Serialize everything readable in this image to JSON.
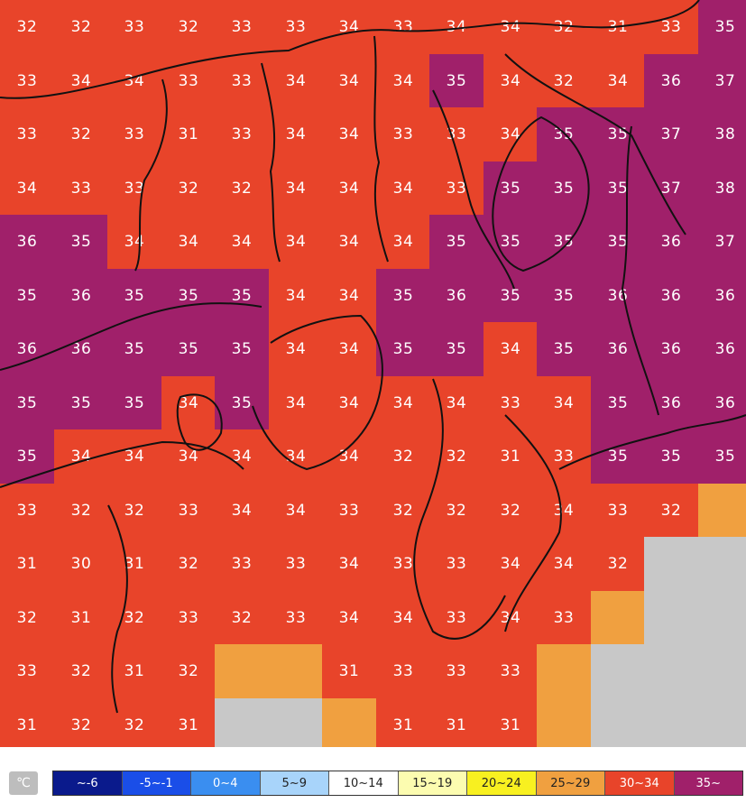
{
  "grid": {
    "cols": 14,
    "rows": 14,
    "values": [
      [
        "32",
        "32",
        "33",
        "32",
        "33",
        "33",
        "34",
        "33",
        "34",
        "34",
        "32",
        "31",
        "33",
        "35"
      ],
      [
        "33",
        "34",
        "34",
        "33",
        "33",
        "34",
        "34",
        "34",
        "35",
        "34",
        "32",
        "34",
        "36",
        "37"
      ],
      [
        "33",
        "32",
        "33",
        "31",
        "33",
        "34",
        "34",
        "33",
        "33",
        "34",
        "35",
        "35",
        "37",
        "38"
      ],
      [
        "34",
        "33",
        "33",
        "32",
        "32",
        "34",
        "34",
        "34",
        "33",
        "35",
        "35",
        "35",
        "37",
        "38"
      ],
      [
        "36",
        "35",
        "34",
        "34",
        "34",
        "34",
        "34",
        "34",
        "35",
        "35",
        "35",
        "35",
        "36",
        "37"
      ],
      [
        "35",
        "36",
        "35",
        "35",
        "35",
        "34",
        "34",
        "35",
        "36",
        "35",
        "35",
        "36",
        "36",
        "36"
      ],
      [
        "36",
        "36",
        "35",
        "35",
        "35",
        "34",
        "34",
        "35",
        "35",
        "34",
        "35",
        "36",
        "36",
        "36"
      ],
      [
        "35",
        "35",
        "35",
        "34",
        "35",
        "34",
        "34",
        "34",
        "34",
        "33",
        "34",
        "35",
        "36",
        "36"
      ],
      [
        "35",
        "34",
        "34",
        "34",
        "34",
        "34",
        "34",
        "32",
        "32",
        "31",
        "33",
        "35",
        "35",
        "35"
      ],
      [
        "33",
        "32",
        "32",
        "33",
        "34",
        "34",
        "33",
        "32",
        "32",
        "32",
        "34",
        "33",
        "32",
        ""
      ],
      [
        "31",
        "30",
        "31",
        "32",
        "33",
        "33",
        "34",
        "33",
        "33",
        "34",
        "34",
        "32",
        "",
        ""
      ],
      [
        "32",
        "31",
        "32",
        "33",
        "32",
        "33",
        "34",
        "34",
        "33",
        "34",
        "33",
        "",
        "",
        ""
      ],
      [
        "33",
        "32",
        "31",
        "32",
        "",
        "",
        "31",
        "33",
        "33",
        "33",
        "",
        "",
        "",
        ""
      ],
      [
        "31",
        "32",
        "32",
        "31",
        "",
        "",
        "",
        "31",
        "31",
        "31",
        "",
        "",
        "",
        ""
      ]
    ],
    "bands": [
      [
        "c30",
        "c30",
        "c30",
        "c30",
        "c30",
        "c30",
        "c30",
        "c30",
        "c30",
        "c30",
        "c30",
        "c30",
        "c30",
        "c35"
      ],
      [
        "c30",
        "c30",
        "c30",
        "c30",
        "c30",
        "c30",
        "c30",
        "c30",
        "c35",
        "c30",
        "c30",
        "c30",
        "c35",
        "c35"
      ],
      [
        "c30",
        "c30",
        "c30",
        "c30",
        "c30",
        "c30",
        "c30",
        "c30",
        "c30",
        "c30",
        "c35",
        "c35",
        "c35",
        "c35"
      ],
      [
        "c30",
        "c30",
        "c30",
        "c30",
        "c30",
        "c30",
        "c30",
        "c30",
        "c30",
        "c35",
        "c35",
        "c35",
        "c35",
        "c35"
      ],
      [
        "c35",
        "c35",
        "c30",
        "c30",
        "c30",
        "c30",
        "c30",
        "c30",
        "c35",
        "c35",
        "c35",
        "c35",
        "c35",
        "c35"
      ],
      [
        "c35",
        "c35",
        "c35",
        "c35",
        "c35",
        "c30",
        "c30",
        "c35",
        "c35",
        "c35",
        "c35",
        "c35",
        "c35",
        "c35"
      ],
      [
        "c35",
        "c35",
        "c35",
        "c35",
        "c35",
        "c30",
        "c30",
        "c35",
        "c35",
        "c30",
        "c35",
        "c35",
        "c35",
        "c35"
      ],
      [
        "c35",
        "c35",
        "c35",
        "c30",
        "c35",
        "c30",
        "c30",
        "c30",
        "c30",
        "c30",
        "c30",
        "c35",
        "c35",
        "c35"
      ],
      [
        "c35",
        "c30",
        "c30",
        "c30",
        "c30",
        "c30",
        "c30",
        "c30",
        "c30",
        "c30",
        "c30",
        "c35",
        "c35",
        "c35"
      ],
      [
        "c30",
        "c30",
        "c30",
        "c30",
        "c30",
        "c30",
        "c30",
        "c30",
        "c30",
        "c30",
        "c30",
        "c30",
        "c30",
        "c25"
      ],
      [
        "c30",
        "c30",
        "c30",
        "c30",
        "c30",
        "c30",
        "c30",
        "c30",
        "c30",
        "c30",
        "c30",
        "c30",
        "na",
        "na"
      ],
      [
        "c30",
        "c30",
        "c30",
        "c30",
        "c30",
        "c30",
        "c30",
        "c30",
        "c30",
        "c30",
        "c30",
        "c25",
        "na",
        "na"
      ],
      [
        "c30",
        "c30",
        "c30",
        "c30",
        "c25",
        "c25",
        "c30",
        "c30",
        "c30",
        "c30",
        "c25",
        "na",
        "na",
        "na"
      ],
      [
        "c30",
        "c30",
        "c30",
        "c30",
        "na",
        "na",
        "c25",
        "c30",
        "c30",
        "c30",
        "c25",
        "na",
        "na",
        "na"
      ]
    ]
  },
  "colors": {
    "c35": "#a0206a",
    "c30": "#e8442a",
    "c25": "#f0a040",
    "na": "#c8c8c8",
    "border": "#111111"
  },
  "legend": {
    "unit": "℃",
    "items": [
      {
        "label": "~-6",
        "bg": "#0a1a8c",
        "fg": "#ffffff"
      },
      {
        "label": "-5~-1",
        "bg": "#1a4ee8",
        "fg": "#ffffff"
      },
      {
        "label": "0~4",
        "bg": "#3a8ef0",
        "fg": "#ffffff"
      },
      {
        "label": "5~9",
        "bg": "#a8d4fa",
        "fg": "#222222"
      },
      {
        "label": "10~14",
        "bg": "#ffffff",
        "fg": "#222222"
      },
      {
        "label": "15~19",
        "bg": "#fcfcb0",
        "fg": "#222222"
      },
      {
        "label": "20~24",
        "bg": "#f8f020",
        "fg": "#222222"
      },
      {
        "label": "25~29",
        "bg": "#f0a040",
        "fg": "#222222"
      },
      {
        "label": "30~34",
        "bg": "#e8442a",
        "fg": "#ffffff"
      },
      {
        "label": "35~",
        "bg": "#a0206a",
        "fg": "#ffffff"
      }
    ]
  }
}
